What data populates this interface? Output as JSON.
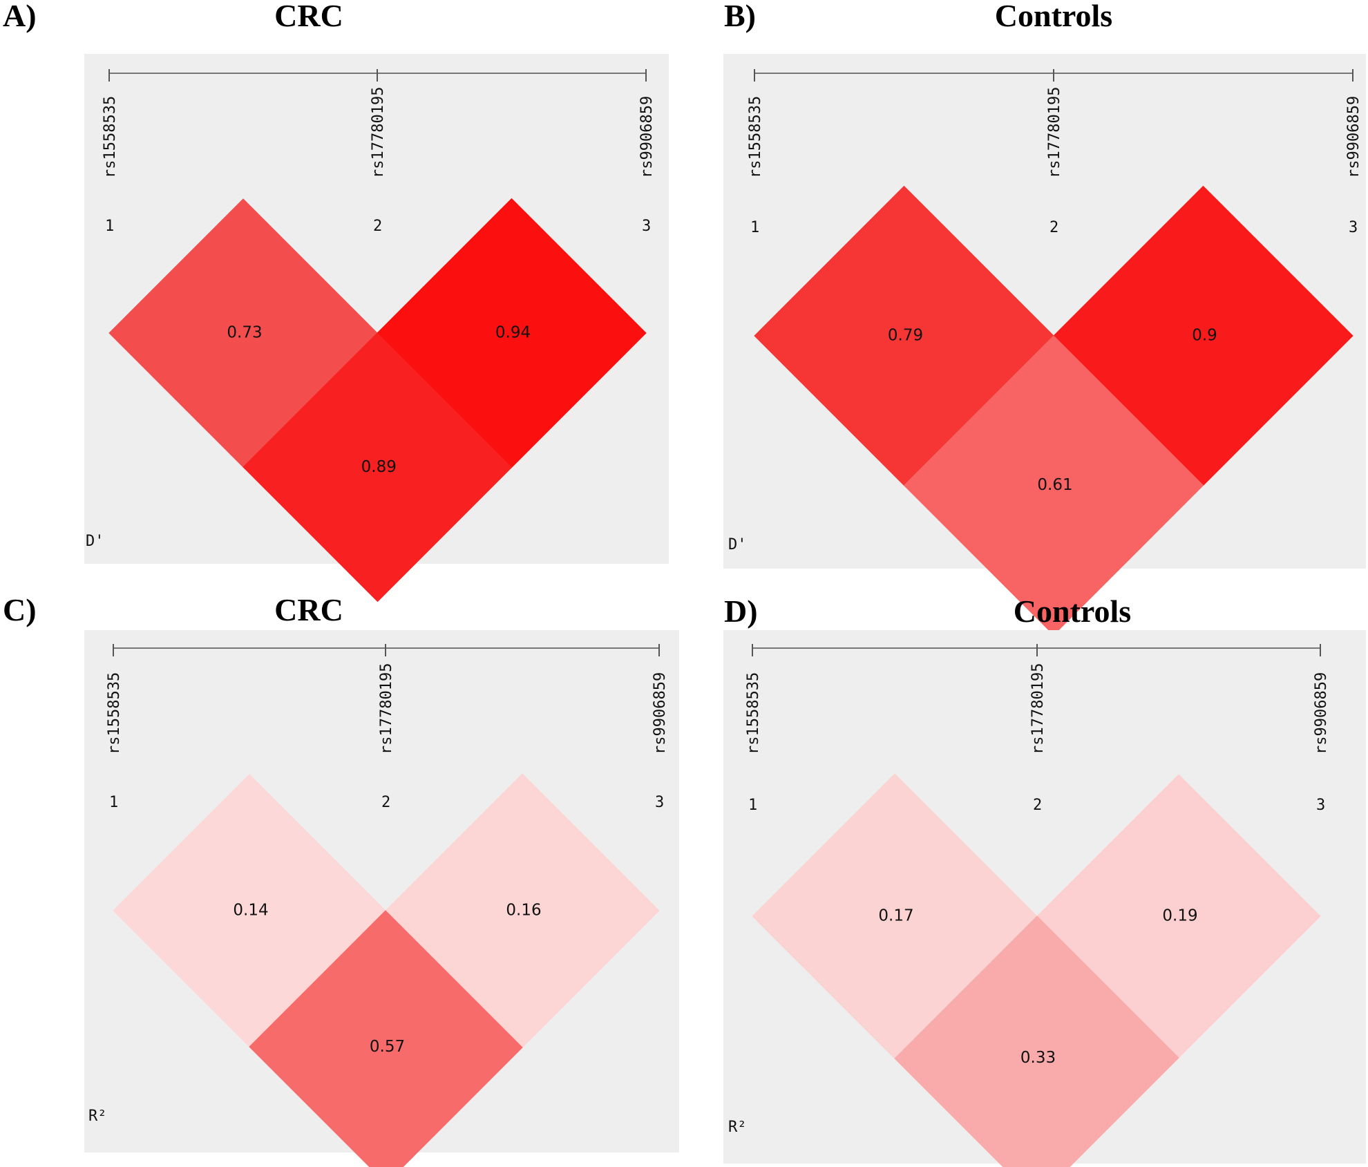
{
  "chart_data": [
    {
      "type": "heatmap",
      "panel_label": "A)",
      "title": "CRC",
      "metric": "D'",
      "markers": [
        "rs1558535",
        "rs17780195",
        "rs9906859"
      ],
      "marker_numbers": [
        "1",
        "2",
        "3"
      ],
      "cells": [
        {
          "pair": [
            "1",
            "2"
          ],
          "value": 0.73,
          "label": "0.73",
          "color": "#f44d4d"
        },
        {
          "pair": [
            "2",
            "3"
          ],
          "value": 0.94,
          "label": "0.94",
          "color": "#fb0f0f"
        },
        {
          "pair": [
            "1",
            "3"
          ],
          "value": 0.89,
          "label": "0.89",
          "color": "#f82020"
        }
      ]
    },
    {
      "type": "heatmap",
      "panel_label": "B)",
      "title": "Controls",
      "metric": "D'",
      "markers": [
        "rs1558535",
        "rs17780195",
        "rs9906859"
      ],
      "marker_numbers": [
        "1",
        "2",
        "3"
      ],
      "cells": [
        {
          "pair": [
            "1",
            "2"
          ],
          "value": 0.79,
          "label": "0.79",
          "color": "#f63535"
        },
        {
          "pair": [
            "2",
            "3"
          ],
          "value": 0.9,
          "label": "0.9",
          "color": "#f91b1b"
        },
        {
          "pair": [
            "1",
            "3"
          ],
          "value": 0.61,
          "label": "0.61",
          "color": "#f86464"
        }
      ]
    },
    {
      "type": "heatmap",
      "panel_label": "C)",
      "title": "CRC",
      "metric": "R²",
      "markers": [
        "rs1558535",
        "rs17780195",
        "rs9906859"
      ],
      "marker_numbers": [
        "1",
        "2",
        "3"
      ],
      "cells": [
        {
          "pair": [
            "1",
            "2"
          ],
          "value": 0.14,
          "label": "0.14",
          "color": "#fcd8d8"
        },
        {
          "pair": [
            "2",
            "3"
          ],
          "value": 0.16,
          "label": "0.16",
          "color": "#fcd5d5"
        },
        {
          "pair": [
            "1",
            "3"
          ],
          "value": 0.57,
          "label": "0.57",
          "color": "#f76b6b"
        }
      ]
    },
    {
      "type": "heatmap",
      "panel_label": "D)",
      "title": "Controls",
      "metric": "R²",
      "markers": [
        "rs1558535",
        "rs17780195",
        "rs9906859"
      ],
      "marker_numbers": [
        "1",
        "2",
        "3"
      ],
      "cells": [
        {
          "pair": [
            "1",
            "2"
          ],
          "value": 0.17,
          "label": "0.17",
          "color": "#fcd3d3"
        },
        {
          "pair": [
            "2",
            "3"
          ],
          "value": 0.19,
          "label": "0.19",
          "color": "#fcd0d0"
        },
        {
          "pair": [
            "1",
            "3"
          ],
          "value": 0.33,
          "label": "0.33",
          "color": "#f9abab"
        }
      ]
    }
  ]
}
